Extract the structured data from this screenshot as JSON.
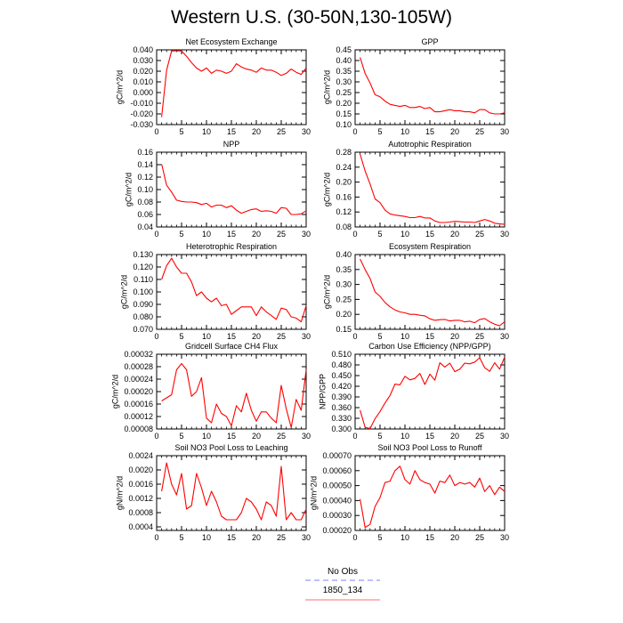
{
  "title": "Western U.S. (30-50N,130-105W)",
  "legend": {
    "items": [
      {
        "label": "No Obs",
        "color": "#9999ff",
        "dashed": true
      },
      {
        "label": "1850_134",
        "color": "#ff8c8c",
        "dashed": false
      }
    ]
  },
  "chart_data": [
    {
      "type": "line",
      "title": "Net Ecosystem Exchange",
      "xlabel": "",
      "ylabel": "gC/m^2/d",
      "xlim": [
        0,
        30
      ],
      "ylim": [
        -0.03,
        0.04
      ],
      "xticks": [
        0,
        5,
        10,
        15,
        20,
        25,
        30
      ],
      "yticks": [
        -0.03,
        -0.02,
        -0.01,
        0.0,
        0.01,
        0.02,
        0.03,
        0.04
      ],
      "yticklabels": [
        "-0.030",
        "-0.020",
        "-0.010",
        "0.000",
        "0.010",
        "0.020",
        "0.030",
        "0.040"
      ],
      "series": [
        {
          "color": "#ff0000",
          "x": [
            1,
            2,
            3,
            4,
            5,
            6,
            7,
            8,
            9,
            10,
            11,
            12,
            13,
            14,
            15,
            16,
            17,
            18,
            19,
            20,
            21,
            22,
            23,
            24,
            25,
            26,
            27,
            28,
            29,
            30
          ],
          "y": [
            -0.023,
            0.021,
            0.039,
            0.039,
            0.039,
            0.034,
            0.028,
            0.023,
            0.02,
            0.023,
            0.018,
            0.021,
            0.02,
            0.018,
            0.02,
            0.027,
            0.024,
            0.022,
            0.021,
            0.019,
            0.023,
            0.021,
            0.021,
            0.019,
            0.016,
            0.018,
            0.022,
            0.019,
            0.017,
            0.023
          ]
        }
      ]
    },
    {
      "type": "line",
      "title": "GPP",
      "xlabel": "",
      "ylabel": "gC/m^2/d",
      "xlim": [
        0,
        30
      ],
      "ylim": [
        0.1,
        0.45
      ],
      "xticks": [
        0,
        5,
        10,
        15,
        20,
        25,
        30
      ],
      "yticks": [
        0.1,
        0.15,
        0.2,
        0.25,
        0.3,
        0.35,
        0.4,
        0.45
      ],
      "yticklabels": [
        "0.10",
        "0.15",
        "0.20",
        "0.25",
        "0.30",
        "0.35",
        "0.40",
        "0.45"
      ],
      "series": [
        {
          "color": "#ff0000",
          "x": [
            1,
            2,
            3,
            4,
            5,
            6,
            7,
            8,
            9,
            10,
            11,
            12,
            13,
            14,
            15,
            16,
            17,
            18,
            19,
            20,
            21,
            22,
            23,
            24,
            25,
            26,
            27,
            28,
            29,
            30
          ],
          "y": [
            0.415,
            0.34,
            0.295,
            0.24,
            0.23,
            0.21,
            0.195,
            0.19,
            0.185,
            0.19,
            0.18,
            0.18,
            0.185,
            0.175,
            0.18,
            0.16,
            0.16,
            0.165,
            0.17,
            0.165,
            0.165,
            0.16,
            0.16,
            0.155,
            0.17,
            0.17,
            0.155,
            0.15,
            0.15,
            0.155
          ]
        }
      ]
    },
    {
      "type": "line",
      "title": "NPP",
      "xlabel": "",
      "ylabel": "gC/m^2/d",
      "xlim": [
        0,
        30
      ],
      "ylim": [
        0.04,
        0.16
      ],
      "xticks": [
        0,
        5,
        10,
        15,
        20,
        25,
        30
      ],
      "yticks": [
        0.04,
        0.06,
        0.08,
        0.1,
        0.12,
        0.14,
        0.16
      ],
      "yticklabels": [
        "0.04",
        "0.06",
        "0.08",
        "0.10",
        "0.12",
        "0.14",
        "0.16"
      ],
      "series": [
        {
          "color": "#ff0000",
          "x": [
            1,
            2,
            3,
            4,
            5,
            6,
            7,
            8,
            9,
            10,
            11,
            12,
            13,
            14,
            15,
            16,
            17,
            18,
            19,
            20,
            21,
            22,
            23,
            24,
            25,
            26,
            27,
            28,
            29,
            30
          ],
          "y": [
            0.141,
            0.107,
            0.096,
            0.083,
            0.081,
            0.08,
            0.08,
            0.079,
            0.076,
            0.078,
            0.072,
            0.075,
            0.075,
            0.071,
            0.074,
            0.067,
            0.062,
            0.065,
            0.068,
            0.069,
            0.065,
            0.066,
            0.065,
            0.062,
            0.071,
            0.07,
            0.06,
            0.06,
            0.061,
            0.066
          ]
        }
      ]
    },
    {
      "type": "line",
      "title": "Autotrophic Respiration",
      "xlabel": "",
      "ylabel": "gC/m^2/d",
      "xlim": [
        0,
        30
      ],
      "ylim": [
        0.08,
        0.28
      ],
      "xticks": [
        0,
        5,
        10,
        15,
        20,
        25,
        30
      ],
      "yticks": [
        0.08,
        0.12,
        0.16,
        0.2,
        0.24,
        0.28
      ],
      "yticklabels": [
        "0.08",
        "0.12",
        "0.16",
        "0.20",
        "0.24",
        "0.28"
      ],
      "series": [
        {
          "color": "#ff0000",
          "x": [
            1,
            2,
            3,
            4,
            5,
            6,
            7,
            8,
            9,
            10,
            11,
            12,
            13,
            14,
            15,
            16,
            17,
            18,
            19,
            20,
            21,
            22,
            23,
            24,
            25,
            26,
            27,
            28,
            29,
            30
          ],
          "y": [
            0.275,
            0.23,
            0.195,
            0.155,
            0.145,
            0.125,
            0.115,
            0.112,
            0.11,
            0.108,
            0.105,
            0.105,
            0.108,
            0.104,
            0.104,
            0.096,
            0.092,
            0.092,
            0.093,
            0.095,
            0.094,
            0.093,
            0.093,
            0.092,
            0.096,
            0.1,
            0.096,
            0.09,
            0.088,
            0.087
          ]
        }
      ]
    },
    {
      "type": "line",
      "title": "Heterotrophic Respiration",
      "xlabel": "",
      "ylabel": "gC/m^2/d",
      "xlim": [
        0,
        30
      ],
      "ylim": [
        0.07,
        0.13
      ],
      "xticks": [
        0,
        5,
        10,
        15,
        20,
        25,
        30
      ],
      "yticks": [
        0.07,
        0.08,
        0.09,
        0.1,
        0.11,
        0.12,
        0.13
      ],
      "yticklabels": [
        "0.070",
        "0.080",
        "0.090",
        "0.100",
        "0.110",
        "0.120",
        "0.130"
      ],
      "series": [
        {
          "color": "#ff0000",
          "x": [
            1,
            2,
            3,
            4,
            5,
            6,
            7,
            8,
            9,
            10,
            11,
            12,
            13,
            14,
            15,
            16,
            17,
            18,
            19,
            20,
            21,
            22,
            23,
            24,
            25,
            26,
            27,
            28,
            29,
            30
          ],
          "y": [
            0.11,
            0.121,
            0.127,
            0.12,
            0.115,
            0.115,
            0.108,
            0.097,
            0.1,
            0.095,
            0.092,
            0.095,
            0.089,
            0.09,
            0.082,
            0.085,
            0.088,
            0.088,
            0.088,
            0.081,
            0.088,
            0.084,
            0.081,
            0.078,
            0.087,
            0.086,
            0.08,
            0.079,
            0.076,
            0.089
          ]
        }
      ]
    },
    {
      "type": "line",
      "title": "Ecosystem Respiration",
      "xlabel": "",
      "ylabel": "gC/m^2/d",
      "xlim": [
        0,
        30
      ],
      "ylim": [
        0.15,
        0.4
      ],
      "xticks": [
        0,
        5,
        10,
        15,
        20,
        25,
        30
      ],
      "yticks": [
        0.15,
        0.2,
        0.25,
        0.3,
        0.35,
        0.4
      ],
      "yticklabels": [
        "0.15",
        "0.20",
        "0.25",
        "0.30",
        "0.35",
        "0.40"
      ],
      "series": [
        {
          "color": "#ff0000",
          "x": [
            1,
            2,
            3,
            4,
            5,
            6,
            7,
            8,
            9,
            10,
            11,
            12,
            13,
            14,
            15,
            16,
            17,
            18,
            19,
            20,
            21,
            22,
            23,
            24,
            25,
            26,
            27,
            28,
            29,
            30
          ],
          "y": [
            0.385,
            0.35,
            0.32,
            0.275,
            0.26,
            0.24,
            0.225,
            0.215,
            0.208,
            0.205,
            0.2,
            0.2,
            0.197,
            0.195,
            0.185,
            0.18,
            0.182,
            0.183,
            0.178,
            0.18,
            0.18,
            0.175,
            0.177,
            0.172,
            0.183,
            0.186,
            0.175,
            0.167,
            0.162,
            0.175
          ]
        }
      ]
    },
    {
      "type": "line",
      "title": "Gridcell Surface CH4 Flux",
      "xlabel": "",
      "ylabel": "gC/m^2/d",
      "xlim": [
        0,
        30
      ],
      "ylim": [
        8e-05,
        0.00032
      ],
      "xticks": [
        0,
        5,
        10,
        15,
        20,
        25,
        30
      ],
      "yticks": [
        8e-05,
        0.00012,
        0.00016,
        0.0002,
        0.00024,
        0.00028,
        0.00032
      ],
      "yticklabels": [
        "0.00008",
        "0.00012",
        "0.00016",
        "0.00020",
        "0.00024",
        "0.00028",
        "0.00032"
      ],
      "series": [
        {
          "color": "#ff0000",
          "x": [
            1,
            2,
            3,
            4,
            5,
            6,
            7,
            8,
            9,
            10,
            11,
            12,
            13,
            14,
            15,
            16,
            17,
            18,
            19,
            20,
            21,
            22,
            23,
            24,
            25,
            26,
            27,
            28,
            29,
            30
          ],
          "y": [
            0.00017,
            0.00018,
            0.00019,
            0.00027,
            0.00029,
            0.00027,
            0.000185,
            0.0002,
            0.000245,
            0.000115,
            0.0001,
            0.00016,
            0.00013,
            0.00012,
            9e-05,
            0.000155,
            0.000135,
            0.000195,
            0.00014,
            0.000105,
            0.000135,
            0.000135,
            0.000115,
            0.0001,
            0.00022,
            0.000145,
            8.5e-05,
            0.000175,
            0.00014,
            0.00027
          ]
        }
      ]
    },
    {
      "type": "line",
      "title": "Carbon Use Efficiency (NPP/GPP)",
      "xlabel": "",
      "ylabel": "NPP/GPP",
      "xlim": [
        0,
        30
      ],
      "ylim": [
        0.3,
        0.51
      ],
      "xticks": [
        0,
        5,
        10,
        15,
        20,
        25,
        30
      ],
      "yticks": [
        0.3,
        0.33,
        0.36,
        0.39,
        0.42,
        0.45,
        0.48,
        0.51
      ],
      "yticklabels": [
        "0.300",
        "0.330",
        "0.360",
        "0.390",
        "0.420",
        "0.450",
        "0.480",
        "0.510"
      ],
      "series": [
        {
          "color": "#ff0000",
          "x": [
            1,
            2,
            3,
            4,
            5,
            6,
            7,
            8,
            9,
            10,
            11,
            12,
            13,
            14,
            15,
            16,
            17,
            18,
            19,
            20,
            21,
            22,
            23,
            24,
            25,
            26,
            27,
            28,
            29,
            30
          ],
          "y": [
            0.353,
            0.305,
            0.301,
            0.329,
            0.349,
            0.373,
            0.394,
            0.426,
            0.424,
            0.448,
            0.438,
            0.442,
            0.456,
            0.425,
            0.454,
            0.437,
            0.486,
            0.474,
            0.485,
            0.461,
            0.468,
            0.485,
            0.483,
            0.488,
            0.5,
            0.472,
            0.462,
            0.486,
            0.468,
            0.502
          ]
        }
      ]
    },
    {
      "type": "line",
      "title": "Soil NO3 Pool Loss to Leaching",
      "xlabel": "",
      "ylabel": "gN/m^2/d",
      "xlim": [
        0,
        30
      ],
      "ylim": [
        0.0003,
        0.0024
      ],
      "xticks": [
        0,
        5,
        10,
        15,
        20,
        25,
        30
      ],
      "yticks": [
        0.0004,
        0.0008,
        0.0012,
        0.0016,
        0.002,
        0.0024
      ],
      "yticklabels": [
        "0.0004",
        "0.0008",
        "0.0012",
        "0.0016",
        "0.0020",
        "0.0024"
      ],
      "series": [
        {
          "color": "#ff0000",
          "x": [
            1,
            2,
            3,
            4,
            5,
            6,
            7,
            8,
            9,
            10,
            11,
            12,
            13,
            14,
            15,
            16,
            17,
            18,
            19,
            20,
            21,
            22,
            23,
            24,
            25,
            26,
            27,
            28,
            29,
            30
          ],
          "y": [
            0.0014,
            0.0022,
            0.0016,
            0.0013,
            0.0019,
            0.0009,
            0.001,
            0.0019,
            0.0015,
            0.001,
            0.0014,
            0.0011,
            0.0007,
            0.0006,
            0.0006,
            0.0006,
            0.0008,
            0.0012,
            0.0011,
            0.0009,
            0.0006,
            0.0011,
            0.001,
            0.0007,
            0.0021,
            0.0006,
            0.0008,
            0.0006,
            0.0006,
            0.0009
          ]
        }
      ]
    },
    {
      "type": "line",
      "title": "Soil NO3 Pool Loss to Runoff",
      "xlabel": "",
      "ylabel": "gN/m^2/d",
      "xlim": [
        0,
        30
      ],
      "ylim": [
        0.0002,
        0.0007
      ],
      "xticks": [
        0,
        5,
        10,
        15,
        20,
        25,
        30
      ],
      "yticks": [
        0.0002,
        0.0003,
        0.0004,
        0.0005,
        0.0006,
        0.0007
      ],
      "yticklabels": [
        "0.00020",
        "0.00030",
        "0.00040",
        "0.00050",
        "0.00060",
        "0.00070"
      ],
      "series": [
        {
          "color": "#ff0000",
          "x": [
            1,
            2,
            3,
            4,
            5,
            6,
            7,
            8,
            9,
            10,
            11,
            12,
            13,
            14,
            15,
            16,
            17,
            18,
            19,
            20,
            21,
            22,
            23,
            24,
            25,
            26,
            27,
            28,
            29,
            30
          ],
          "y": [
            0.00041,
            0.00022,
            0.00024,
            0.00036,
            0.00042,
            0.00052,
            0.00053,
            0.0006,
            0.00063,
            0.00054,
            0.00051,
            0.0006,
            0.00054,
            0.00052,
            0.00051,
            0.00045,
            0.00053,
            0.00052,
            0.00057,
            0.0005,
            0.00052,
            0.00051,
            0.00052,
            0.00049,
            0.00055,
            0.00046,
            0.0005,
            0.00044,
            0.00049,
            0.00046
          ]
        }
      ]
    }
  ]
}
